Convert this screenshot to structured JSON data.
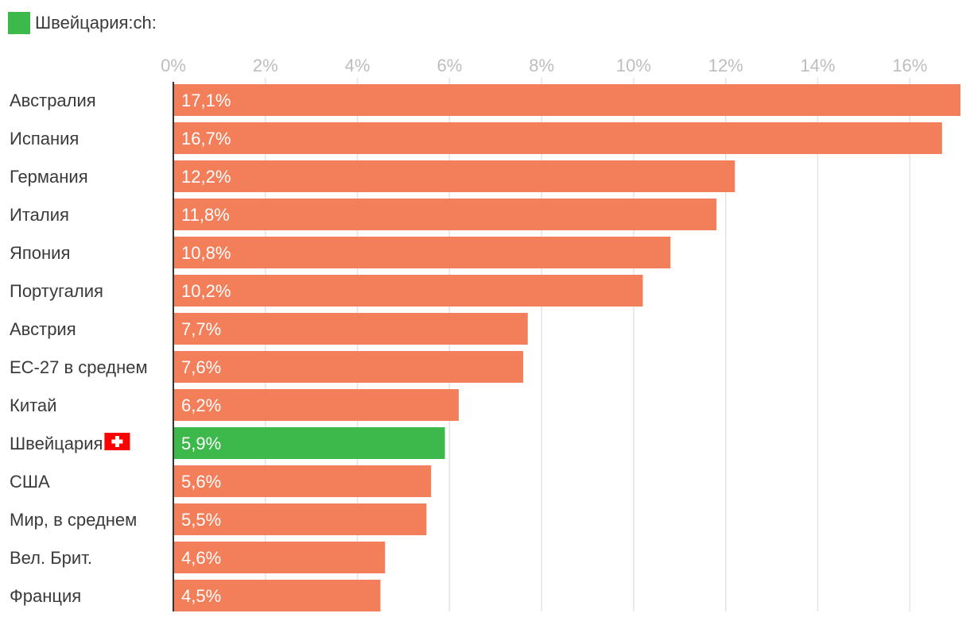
{
  "legend": {
    "label": "Швейцария:ch:",
    "color": "#3db84a"
  },
  "colors": {
    "bar": "#f37e5a",
    "highlight": "#3db84a",
    "grid": "#e3e3e3",
    "axis": "#333333"
  },
  "chart_data": {
    "type": "bar",
    "orientation": "horizontal",
    "categories": [
      "Австралия",
      "Испания",
      "Германия",
      "Италия",
      "Япония",
      "Португалия",
      "Австрия",
      "ЕС-27 в среднем",
      "Китай",
      "Швейцария",
      "США",
      "Мир, в среднем",
      "Вел. Брит.",
      "Франция"
    ],
    "values": [
      17.1,
      16.7,
      12.2,
      11.8,
      10.8,
      10.2,
      7.7,
      7.6,
      6.2,
      5.9,
      5.6,
      5.5,
      4.6,
      4.5
    ],
    "value_labels": [
      "17,1%",
      "16,7%",
      "12,2%",
      "11,8%",
      "10,8%",
      "10,2%",
      "7,7%",
      "7,6%",
      "6,2%",
      "5,9%",
      "5,6%",
      "5,5%",
      "4,6%",
      "4,5%"
    ],
    "highlight_index": 9,
    "highlight_icon": "swiss-flag-icon",
    "x_ticks": [
      0,
      2,
      4,
      6,
      8,
      10,
      12,
      14,
      16
    ],
    "x_tick_labels": [
      "0%",
      "2%",
      "4%",
      "6%",
      "8%",
      "10%",
      "12%",
      "14%",
      "16%"
    ],
    "xlim": [
      0,
      17.1
    ],
    "grid": true,
    "axis_position": "top"
  }
}
